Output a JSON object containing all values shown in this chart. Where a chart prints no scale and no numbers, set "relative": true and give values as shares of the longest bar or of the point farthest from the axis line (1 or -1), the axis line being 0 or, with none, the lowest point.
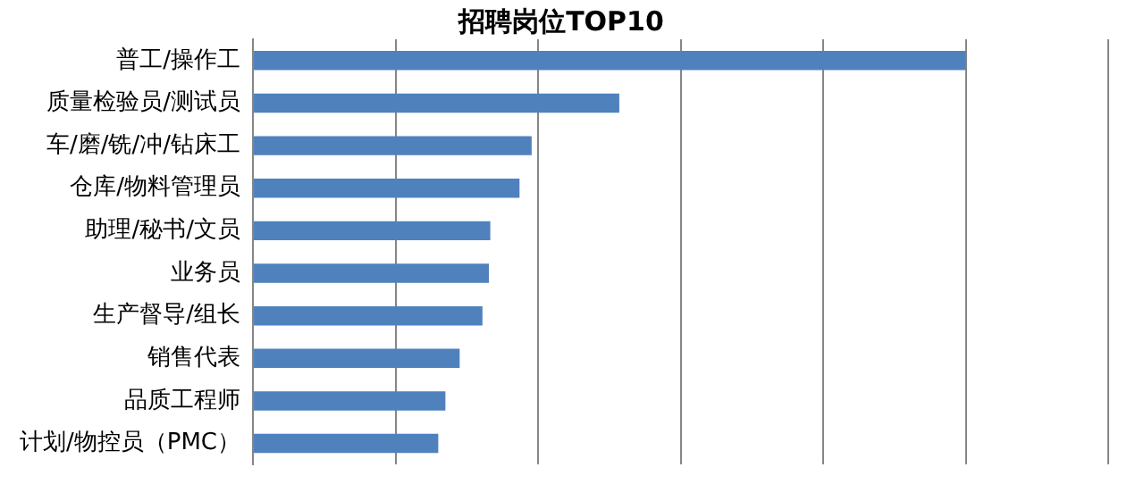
{
  "chart_data": {
    "type": "bar",
    "orientation": "horizontal",
    "relative": true,
    "title": "招聘岗位TOP10",
    "categories": [
      "普工/操作工",
      "质量检验员/测试员",
      "车/磨/铣/冲/钻床工",
      "仓库/物料管理员",
      "助理/秘书/文员",
      "业务员",
      "生产督导/组长",
      "销售代表",
      "品质工程师",
      "计划/物控员（PMC）"
    ],
    "values": [
      1,
      0.514,
      0.391,
      0.374,
      0.333,
      0.331,
      0.322,
      0.29,
      0.27,
      0.26
    ],
    "color": "#4f81bd",
    "grid": "x",
    "legend": false
  }
}
